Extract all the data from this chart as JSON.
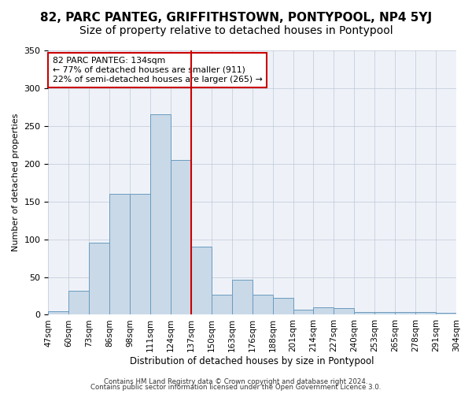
{
  "title": "82, PARC PANTEG, GRIFFITHSTOWN, PONTYPOOL, NP4 5YJ",
  "subtitle": "Size of property relative to detached houses in Pontypool",
  "xlabel": "Distribution of detached houses by size in Pontypool",
  "ylabel": "Number of detached properties",
  "bin_labels": [
    "47sqm",
    "60sqm",
    "73sqm",
    "86sqm",
    "98sqm",
    "111sqm",
    "124sqm",
    "137sqm",
    "150sqm",
    "163sqm",
    "176sqm",
    "188sqm",
    "201sqm",
    "214sqm",
    "227sqm",
    "240sqm",
    "253sqm",
    "265sqm",
    "278sqm",
    "291sqm",
    "304sqm"
  ],
  "bar_heights": [
    5,
    32,
    95,
    160,
    160,
    265,
    205,
    90,
    27,
    46,
    27,
    22,
    7,
    10,
    9,
    4,
    4,
    4,
    4,
    3
  ],
  "bar_color": "#c9d9e8",
  "bar_edge_color": "#6a9bbf",
  "vline_x": 7,
  "vline_color": "#cc0000",
  "annotation_text": "82 PARC PANTEG: 134sqm\n← 77% of detached houses are smaller (911)\n22% of semi-detached houses are larger (265) →",
  "annotation_box_color": "#ffffff",
  "annotation_box_edge": "#cc0000",
  "ylim": [
    0,
    350
  ],
  "yticks": [
    0,
    50,
    100,
    150,
    200,
    250,
    300,
    350
  ],
  "footnote1": "Contains HM Land Registry data © Crown copyright and database right 2024.",
  "footnote2": "Contains public sector information licensed under the Open Government Licence 3.0.",
  "bg_color": "#eef2f8",
  "plot_bg_color": "#ffffff",
  "title_fontsize": 11,
  "subtitle_fontsize": 10
}
